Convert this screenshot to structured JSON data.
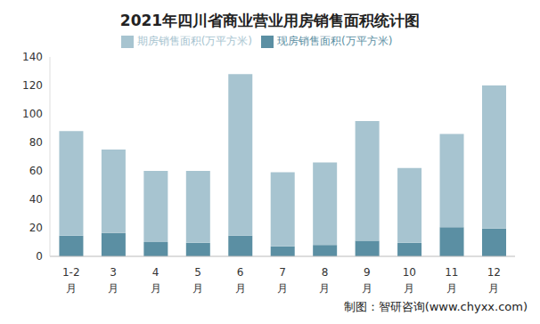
{
  "chart_data": {
    "type": "bar",
    "title": "2021年四川省商业营业用房销售面积统计图",
    "source": "制图：智研咨询(www.chyxx.com)",
    "categories": [
      "1-2月",
      "3月",
      "4月",
      "5月",
      "6月",
      "7月",
      "8月",
      "9月",
      "10月",
      "11月",
      "12月"
    ],
    "series": [
      {
        "name": "现房销售面积(万平方米)",
        "color": "#5b8fa3",
        "values": [
          14.5,
          16.5,
          10,
          9.5,
          14.5,
          7,
          8,
          11,
          9.5,
          20.5,
          19.5
        ]
      },
      {
        "name": "期房销售面积(万平方米)",
        "color": "#a7c4d0",
        "values": [
          73.5,
          58.5,
          50,
          50.5,
          113.5,
          52,
          58,
          84,
          52.5,
          65.5,
          100.5
        ]
      }
    ],
    "stacked": true,
    "ylim": [
      0,
      140
    ],
    "yticks": [
      0,
      20,
      40,
      60,
      80,
      100,
      120,
      140
    ],
    "grid": false,
    "legend": "top"
  }
}
